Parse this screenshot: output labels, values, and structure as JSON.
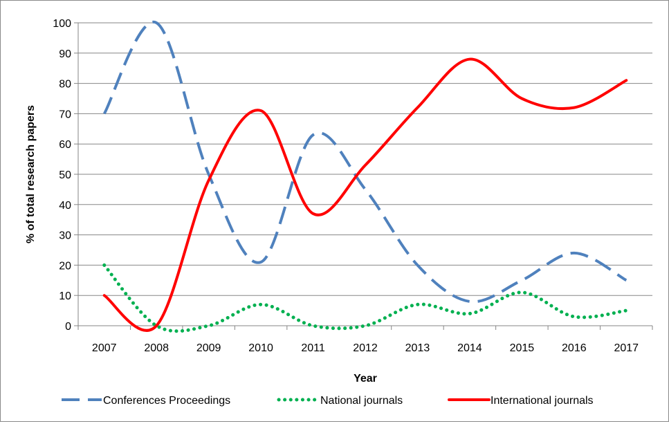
{
  "chart_data": {
    "type": "line",
    "title": "",
    "xlabel": "Year",
    "ylabel": "% of total research papers",
    "ylim": [
      0,
      100
    ],
    "yticks": [
      0,
      10,
      20,
      30,
      40,
      50,
      60,
      70,
      80,
      90,
      100
    ],
    "grid": true,
    "legend_position": "bottom",
    "categories": [
      "2007",
      "2008",
      "2009",
      "2010",
      "2011",
      "2012",
      "2013",
      "2014",
      "2015",
      "2016",
      "2017"
    ],
    "series": [
      {
        "name": "Conferences Proceedings",
        "color": "#4F81BD",
        "style": "dashed",
        "values": [
          70,
          100,
          50,
          21,
          63,
          45,
          20,
          8,
          15,
          24,
          15
        ]
      },
      {
        "name": "National journals",
        "color": "#00B050",
        "style": "dotted",
        "values": [
          20,
          0,
          0,
          7,
          0,
          0,
          7,
          4,
          11,
          3,
          5
        ]
      },
      {
        "name": "International journals",
        "color": "#FF0000",
        "style": "solid",
        "values": [
          10,
          0,
          48,
          71,
          37,
          53,
          72,
          88,
          75,
          72,
          81
        ]
      }
    ]
  }
}
